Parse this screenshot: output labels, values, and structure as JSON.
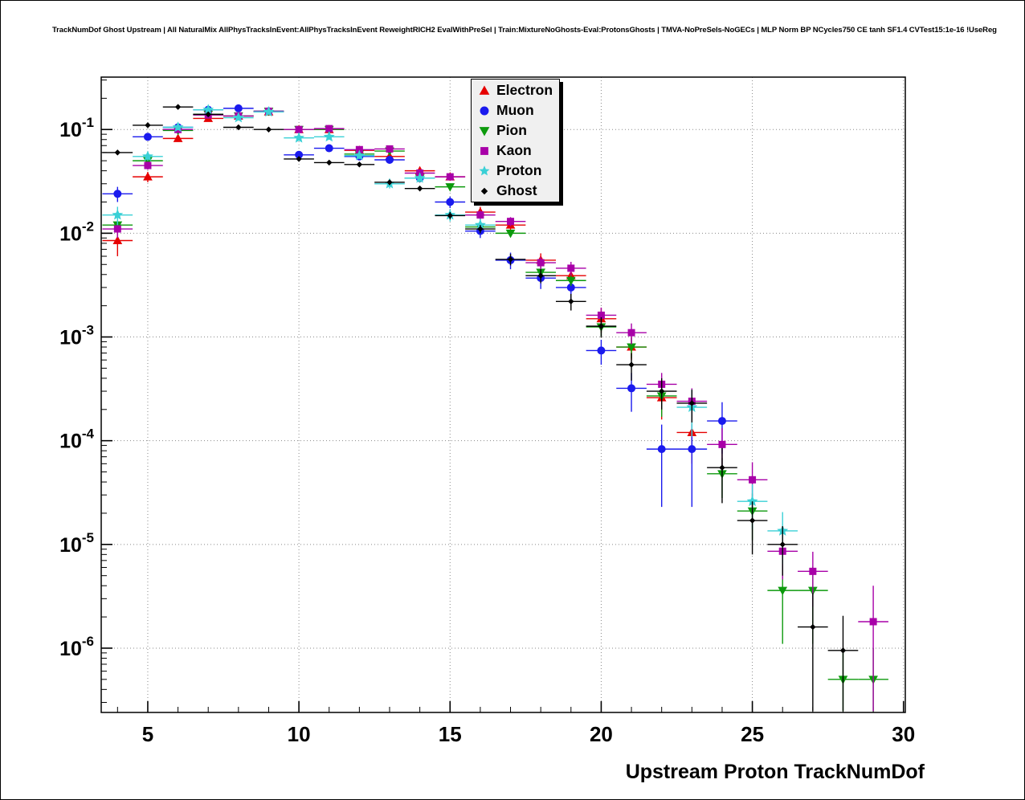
{
  "chart_data": {
    "type": "scatter",
    "title": "TrackNumDof Ghost Upstream | All NaturalMix AllPhysTracksInEvent:AllPhysTracksInEvent ReweightRICH2 EvalWithPreSel | Train:MixtureNoGhosts-Eval:ProtonsGhosts | TMVA-NoPreSels-NoGECs | MLP Norm BP NCycles750 CE tanh SF1.4 CVTest15:1e-16 !UseReg",
    "xlabel": "Upstream Proton TrackNumDof",
    "ylabel": "",
    "yscale": "log",
    "grid": true,
    "legend_position": "top-center-right",
    "xlim": [
      3.46,
      30.06
    ],
    "ylim": [
      2.4e-07,
      0.32
    ],
    "xticks": [
      5,
      10,
      15,
      20,
      25,
      30
    ],
    "ydecades": [
      -1,
      -2,
      -3,
      -4,
      -5,
      -6
    ],
    "bin_half_width": 0.5,
    "series": [
      {
        "name": "Electron",
        "color": "#e60000",
        "marker": "triangle-up",
        "msize": 5,
        "points": [
          [
            4,
            0.0085,
            0.0025
          ],
          [
            5,
            0.035,
            0.004
          ],
          [
            6,
            0.082,
            0.006
          ],
          [
            7,
            0.128,
            0.007
          ],
          [
            8,
            0.135,
            0.007
          ],
          [
            9,
            0.148,
            0.007
          ],
          [
            10,
            0.1,
            0.005
          ],
          [
            11,
            0.1,
            0.005
          ],
          [
            12,
            0.063,
            0.004
          ],
          [
            13,
            0.055,
            0.004
          ],
          [
            14,
            0.04,
            0.003
          ],
          [
            15,
            0.035,
            0.003
          ],
          [
            16,
            0.016,
            0.002
          ],
          [
            17,
            0.012,
            0.0015
          ],
          [
            18,
            0.0055,
            0.0009
          ],
          [
            19,
            0.0039,
            0.0007
          ],
          [
            20,
            0.0015,
            0.0004
          ],
          [
            21,
            0.0008,
            0.0002
          ],
          [
            22,
            0.00026,
            0.0001
          ],
          [
            23,
            0.00012,
            6e-05
          ]
        ]
      },
      {
        "name": "Muon",
        "color": "#1a1aee",
        "marker": "circle",
        "msize": 5,
        "points": [
          [
            4,
            0.024,
            0.004
          ],
          [
            5,
            0.085,
            0.006
          ],
          [
            6,
            0.105,
            0.007
          ],
          [
            7,
            0.155,
            0.008
          ],
          [
            8,
            0.16,
            0.008
          ],
          [
            9,
            0.15,
            0.008
          ],
          [
            10,
            0.057,
            0.004
          ],
          [
            11,
            0.066,
            0.005
          ],
          [
            12,
            0.055,
            0.004
          ],
          [
            13,
            0.051,
            0.004
          ],
          [
            14,
            0.034,
            0.003
          ],
          [
            15,
            0.02,
            0.0025
          ],
          [
            16,
            0.0105,
            0.0015
          ],
          [
            17,
            0.0055,
            0.001
          ],
          [
            18,
            0.0037,
            0.0008
          ],
          [
            19,
            0.003,
            0.0007
          ],
          [
            20,
            0.00074,
            0.0002
          ],
          [
            21,
            0.00032,
            0.00013
          ],
          [
            22,
            8.3e-05,
            6e-05
          ],
          [
            23,
            8.3e-05,
            6e-05
          ],
          [
            24,
            0.000155,
            8e-05
          ]
        ]
      },
      {
        "name": "Pion",
        "color": "#0c9a0c",
        "marker": "triangle-down",
        "msize": 5,
        "points": [
          [
            4,
            0.012,
            0.001
          ],
          [
            5,
            0.05,
            0.002
          ],
          [
            6,
            0.098,
            0.003
          ],
          [
            7,
            0.14,
            0.003
          ],
          [
            8,
            0.135,
            0.003
          ],
          [
            9,
            0.15,
            0.003
          ],
          [
            10,
            0.1,
            0.0025
          ],
          [
            11,
            0.1,
            0.0025
          ],
          [
            12,
            0.058,
            0.002
          ],
          [
            13,
            0.062,
            0.002
          ],
          [
            14,
            0.034,
            0.0015
          ],
          [
            15,
            0.028,
            0.0013
          ],
          [
            16,
            0.0115,
            0.0008
          ],
          [
            17,
            0.01,
            0.0007
          ],
          [
            18,
            0.0042,
            0.0005
          ],
          [
            19,
            0.0035,
            0.0004
          ],
          [
            20,
            0.00125,
            0.00025
          ],
          [
            21,
            0.0008,
            0.00018
          ],
          [
            22,
            0.00027,
            0.0001
          ],
          [
            24,
            4.8e-05,
            2e-05
          ],
          [
            25,
            2.1e-05,
            1e-05
          ],
          [
            26,
            3.6e-06,
            2.5e-06
          ],
          [
            27,
            3.6e-06,
            2.5e-06
          ],
          [
            28,
            5e-07,
            5e-07
          ],
          [
            29,
            5e-07,
            5e-07
          ]
        ]
      },
      {
        "name": "Kaon",
        "color": "#a800a8",
        "marker": "square",
        "msize": 5,
        "points": [
          [
            4,
            0.011,
            0.002
          ],
          [
            5,
            0.045,
            0.004
          ],
          [
            6,
            0.1,
            0.006
          ],
          [
            7,
            0.138,
            0.006
          ],
          [
            8,
            0.135,
            0.006
          ],
          [
            9,
            0.15,
            0.006
          ],
          [
            10,
            0.1,
            0.004
          ],
          [
            11,
            0.102,
            0.004
          ],
          [
            12,
            0.064,
            0.003
          ],
          [
            13,
            0.065,
            0.003
          ],
          [
            14,
            0.038,
            0.0025
          ],
          [
            15,
            0.035,
            0.0025
          ],
          [
            16,
            0.015,
            0.0015
          ],
          [
            17,
            0.013,
            0.0013
          ],
          [
            18,
            0.0052,
            0.0007
          ],
          [
            19,
            0.0046,
            0.0007
          ],
          [
            20,
            0.00162,
            0.0003
          ],
          [
            21,
            0.0011,
            0.00025
          ],
          [
            22,
            0.00035,
            0.0001
          ],
          [
            23,
            0.00024,
            8e-05
          ],
          [
            24,
            9.2e-05,
            4e-05
          ],
          [
            25,
            4.2e-05,
            2e-05
          ],
          [
            26,
            8.6e-06,
            4e-06
          ],
          [
            27,
            5.5e-06,
            3e-06
          ],
          [
            29,
            1.8e-06,
            2.2e-06
          ]
        ]
      },
      {
        "name": "Proton",
        "color": "#3ad0d6",
        "marker": "star",
        "msize": 6,
        "points": [
          [
            4,
            0.015,
            0.003
          ],
          [
            5,
            0.055,
            0.005
          ],
          [
            6,
            0.105,
            0.006
          ],
          [
            7,
            0.155,
            0.007
          ],
          [
            8,
            0.13,
            0.007
          ],
          [
            9,
            0.148,
            0.007
          ],
          [
            10,
            0.083,
            0.005
          ],
          [
            11,
            0.085,
            0.005
          ],
          [
            12,
            0.056,
            0.004
          ],
          [
            13,
            0.03,
            0.003
          ],
          [
            14,
            0.034,
            0.003
          ],
          [
            15,
            0.015,
            0.002
          ],
          [
            16,
            0.012,
            0.0018
          ],
          [
            23,
            0.00021,
            0.0001
          ],
          [
            25,
            2.6e-05,
            1.2e-05
          ],
          [
            26,
            1.35e-05,
            7e-06
          ]
        ]
      },
      {
        "name": "Ghost",
        "color": "#000000",
        "marker": "diamond",
        "msize": 3,
        "points": [
          [
            4,
            0.06,
            0.003
          ],
          [
            5,
            0.11,
            0.004
          ],
          [
            6,
            0.165,
            0.005
          ],
          [
            7,
            0.14,
            0.004
          ],
          [
            8,
            0.105,
            0.004
          ],
          [
            9,
            0.1,
            0.004
          ],
          [
            10,
            0.052,
            0.0025
          ],
          [
            11,
            0.048,
            0.0025
          ],
          [
            12,
            0.046,
            0.002
          ],
          [
            13,
            0.031,
            0.0018
          ],
          [
            14,
            0.027,
            0.0016
          ],
          [
            15,
            0.0148,
            0.0012
          ],
          [
            16,
            0.011,
            0.001
          ],
          [
            17,
            0.0056,
            0.0007
          ],
          [
            18,
            0.0039,
            0.0006
          ],
          [
            19,
            0.0022,
            0.0004
          ],
          [
            20,
            0.00127,
            0.00028
          ],
          [
            21,
            0.00054,
            0.00016
          ],
          [
            22,
            0.0003,
            0.0001
          ],
          [
            23,
            0.00023,
            8e-05
          ],
          [
            24,
            5.5e-05,
            3e-05
          ],
          [
            25,
            1.7e-05,
            9e-06
          ],
          [
            26,
            1e-05,
            5e-06
          ],
          [
            27,
            1.6e-06,
            1.8e-06
          ],
          [
            28,
            9.5e-07,
            1.1e-06
          ]
        ]
      }
    ]
  }
}
